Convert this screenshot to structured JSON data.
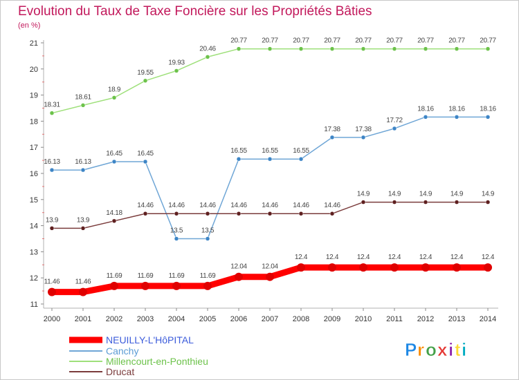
{
  "chart_data": {
    "type": "line",
    "title": "Evolution du Taux de Taxe Foncière sur les Propriétés Bâties",
    "subtitle": "(en %)",
    "x": [
      "2000",
      "2001",
      "2002",
      "2003",
      "2004",
      "2005",
      "2006",
      "2007",
      "2008",
      "2009",
      "2010",
      "2011",
      "2012",
      "2013",
      "2014"
    ],
    "ylim": [
      11,
      21
    ],
    "yticks": [
      "11",
      "12",
      "13",
      "14",
      "15",
      "16",
      "17",
      "18",
      "19",
      "20",
      "21"
    ],
    "grid": false,
    "legend_position": "bottom-left",
    "series": [
      {
        "name": "NEUILLY-L'HôPITAL",
        "color": "#ff0000",
        "labelColor": "#3b5bdb",
        "values": [
          11.46,
          11.46,
          11.69,
          11.69,
          11.69,
          11.69,
          12.04,
          12.04,
          12.4,
          12.4,
          12.4,
          12.4,
          12.4,
          12.4,
          12.4
        ],
        "labels": [
          "11.46",
          "11.46",
          "11.69",
          "11.69",
          "11.69",
          "11.69",
          "12.04",
          "12.04",
          "12.4",
          "12.4",
          "12.4",
          "12.4",
          "12.4",
          "12.4",
          "12.4"
        ]
      },
      {
        "name": "Canchy",
        "color": "#6fa6d6",
        "pointColor": "#3d85c6",
        "labelColor": "#5b9bd5",
        "values": [
          16.13,
          16.13,
          16.45,
          16.45,
          13.5,
          13.5,
          16.55,
          16.55,
          16.55,
          17.38,
          17.38,
          17.72,
          18.16,
          18.16,
          18.16
        ],
        "labels": [
          "16.13",
          "16.13",
          "16.45",
          "16.45",
          "13.5",
          "13.5",
          "16.55",
          "16.55",
          "16.55",
          "17.38",
          "17.38",
          "17.72",
          "18.16",
          "18.16",
          "18.16"
        ]
      },
      {
        "name": "Millencourt-en-Ponthieu",
        "color": "#9ee07a",
        "pointColor": "#6cc24a",
        "labelColor": "#6cc24a",
        "values": [
          18.31,
          18.61,
          18.9,
          19.55,
          19.93,
          20.46,
          20.77,
          20.77,
          20.77,
          20.77,
          20.77,
          20.77,
          20.77,
          20.77,
          20.77
        ],
        "labels": [
          "18.31",
          "18.61",
          "18.9",
          "19.55",
          "19.93",
          "20.46",
          "20.77",
          "20.77",
          "20.77",
          "20.77",
          "20.77",
          "20.77",
          "20.77",
          "20.77",
          "20.77"
        ]
      },
      {
        "name": "Drucat",
        "color": "#7a3b3b",
        "pointColor": "#5e1f1f",
        "labelColor": "#7a3b3b",
        "values": [
          13.9,
          13.9,
          14.18,
          14.46,
          14.46,
          14.46,
          14.46,
          14.46,
          14.46,
          14.46,
          14.9,
          14.9,
          14.9,
          14.9,
          14.9
        ],
        "labels": [
          "13.9",
          "13.9",
          "14.18",
          "14.46",
          "14.46",
          "14.46",
          "14.46",
          "14.46",
          "14.46",
          "14.46",
          "14.9",
          "14.9",
          "14.9",
          "14.9",
          "14.9"
        ]
      }
    ]
  },
  "logo": {
    "letters": [
      "P",
      "r",
      "o",
      "x",
      "i",
      "t",
      "i"
    ],
    "colors": [
      "#1e88e5",
      "#fb8c00",
      "#43a047",
      "#e53935",
      "#8e24aa",
      "#fdd835",
      "#00acc1"
    ]
  }
}
